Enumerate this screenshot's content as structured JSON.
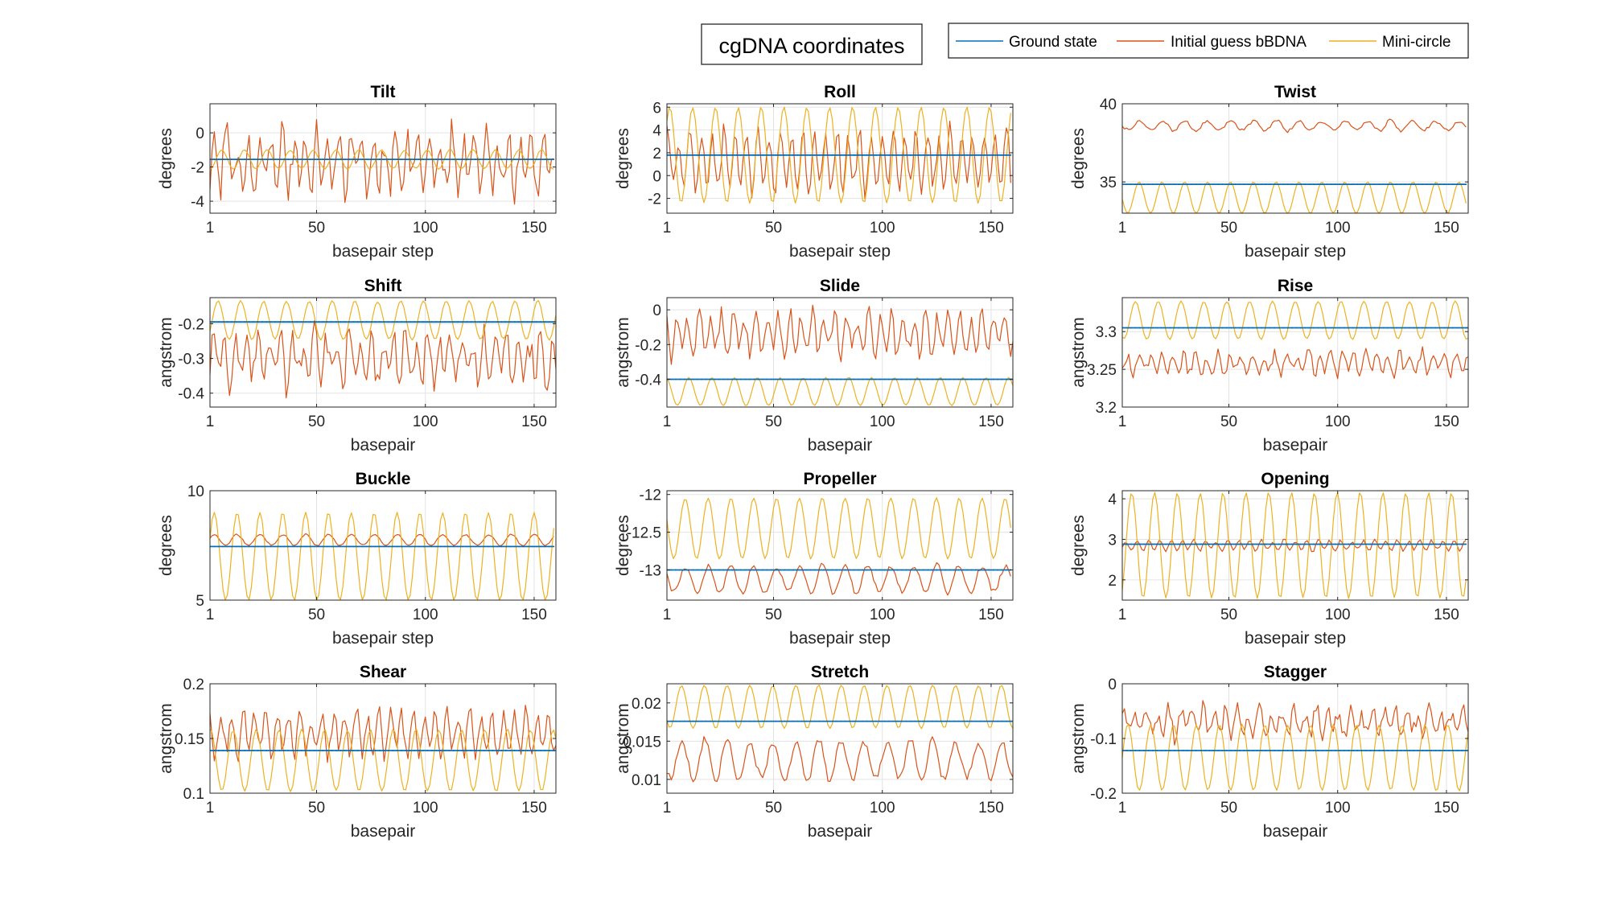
{
  "figure_title": "cgDNA coordinates",
  "legend": [
    {
      "label": "Ground state",
      "color": "#0072BD"
    },
    {
      "label": "Initial guess bBDNA",
      "color": "#D95319"
    },
    {
      "label": "Mini-circle",
      "color": "#EDB120"
    }
  ],
  "chart_data": [
    {
      "type": "line",
      "title": "Tilt",
      "xlabel": "basepair step",
      "ylabel": "degrees",
      "xlim": [
        1,
        160
      ],
      "ylim": [
        -4.7,
        1.7
      ],
      "xticks": [
        1,
        50,
        100,
        150
      ],
      "yticks": [
        -4,
        -2,
        0
      ],
      "x": {
        "start": 1,
        "end": 159
      },
      "series": [
        {
          "name": "Ground state",
          "mean": -1.55,
          "amp": 0,
          "period": 10.5,
          "noise": 0
        },
        {
          "name": "Initial guess bBDNA",
          "mean": -1.7,
          "amp": 1.4,
          "period": 5.2,
          "noise": 1.4
        },
        {
          "name": "Mini-circle",
          "mean": -1.55,
          "amp": 0.55,
          "period": 10.5,
          "noise": 0.05
        }
      ]
    },
    {
      "type": "line",
      "title": "Roll",
      "xlabel": "basepair step",
      "ylabel": "degrees",
      "xlim": [
        1,
        160
      ],
      "ylim": [
        -3.3,
        6.3
      ],
      "xticks": [
        1,
        50,
        100,
        150
      ],
      "yticks": [
        -2,
        0,
        2,
        4,
        6
      ],
      "x": {
        "start": 1,
        "end": 159
      },
      "series": [
        {
          "name": "Ground state",
          "mean": 1.8,
          "amp": 0,
          "period": 10.5,
          "noise": 0
        },
        {
          "name": "Initial guess bBDNA",
          "mean": 1.3,
          "amp": 2.4,
          "period": 5.2,
          "noise": 1.2
        },
        {
          "name": "Mini-circle",
          "mean": 1.8,
          "amp": 4.2,
          "period": 10.5,
          "noise": 0.05
        }
      ]
    },
    {
      "type": "line",
      "title": "Twist",
      "xlabel": "basepair step",
      "ylabel": "degrees",
      "xlim": [
        1,
        160
      ],
      "ylim": [
        33,
        40
      ],
      "xticks": [
        1,
        50,
        100,
        150
      ],
      "yticks": [
        35,
        40
      ],
      "x": {
        "start": 1,
        "end": 159
      },
      "series": [
        {
          "name": "Ground state",
          "mean": 34.85,
          "amp": 0,
          "period": 10.5,
          "noise": 0
        },
        {
          "name": "Initial guess bBDNA",
          "mean": 38.6,
          "amp": 0.3,
          "period": 10.5,
          "noise": 0.15
        },
        {
          "name": "Mini-circle",
          "mean": 34.0,
          "amp": 1.0,
          "period": 10.5,
          "noise": 0.02
        }
      ]
    },
    {
      "type": "line",
      "title": "Shift",
      "xlabel": "basepair",
      "ylabel": "angstrom",
      "xlim": [
        1,
        160
      ],
      "ylim": [
        -0.44,
        -0.125
      ],
      "xticks": [
        1,
        50,
        100,
        150
      ],
      "yticks": [
        -0.4,
        -0.3,
        -0.2
      ],
      "x": {
        "start": 1,
        "end": 160
      },
      "series": [
        {
          "name": "Ground state",
          "mean": -0.195,
          "amp": 0,
          "period": 10.5,
          "noise": 0
        },
        {
          "name": "Initial guess bBDNA",
          "mean": -0.3,
          "amp": 0.06,
          "period": 5.2,
          "noise": 0.06
        },
        {
          "name": "Mini-circle",
          "mean": -0.19,
          "amp": 0.055,
          "period": 10.5,
          "noise": 0.003
        }
      ]
    },
    {
      "type": "line",
      "title": "Slide",
      "xlabel": "basepair",
      "ylabel": "angstrom",
      "xlim": [
        1,
        160
      ],
      "ylim": [
        -0.56,
        0.07
      ],
      "xticks": [
        1,
        50,
        100,
        150
      ],
      "yticks": [
        -0.4,
        -0.2,
        0
      ],
      "x": {
        "start": 1,
        "end": 160
      },
      "series": [
        {
          "name": "Ground state",
          "mean": -0.4,
          "amp": 0,
          "period": 10.5,
          "noise": 0
        },
        {
          "name": "Initial guess bBDNA",
          "mean": -0.14,
          "amp": 0.1,
          "period": 5.2,
          "noise": 0.08
        },
        {
          "name": "Mini-circle",
          "mean": -0.47,
          "amp": 0.08,
          "period": 10.5,
          "noise": 0.003
        }
      ]
    },
    {
      "type": "line",
      "title": "Rise",
      "xlabel": "basepair",
      "ylabel": "angstrom",
      "xlim": [
        1,
        160
      ],
      "ylim": [
        3.2,
        3.345
      ],
      "xticks": [
        1,
        50,
        100,
        150
      ],
      "yticks": [
        3.2,
        3.25,
        3.3
      ],
      "x": {
        "start": 1,
        "end": 160
      },
      "series": [
        {
          "name": "Ground state",
          "mean": 3.305,
          "amp": 0,
          "period": 10.5,
          "noise": 0
        },
        {
          "name": "Initial guess bBDNA",
          "mean": 3.258,
          "amp": 0.012,
          "period": 5.2,
          "noise": 0.012
        },
        {
          "name": "Mini-circle",
          "mean": 3.315,
          "amp": 0.025,
          "period": 10.5,
          "noise": 0.001
        }
      ]
    },
    {
      "type": "line",
      "title": "Buckle",
      "xlabel": "basepair step",
      "ylabel": "degrees",
      "xlim": [
        1,
        160
      ],
      "ylim": [
        5,
        10
      ],
      "xticks": [
        1,
        50,
        100,
        150
      ],
      "yticks": [
        5,
        10
      ],
      "x": {
        "start": 1,
        "end": 159
      },
      "series": [
        {
          "name": "Ground state",
          "mean": 7.45,
          "amp": 0,
          "period": 10.5,
          "noise": 0
        },
        {
          "name": "Initial guess bBDNA",
          "mean": 7.75,
          "amp": 0.25,
          "period": 10.5,
          "noise": 0.05
        },
        {
          "name": "Mini-circle",
          "mean": 7.0,
          "amp": 2.0,
          "period": 10.5,
          "noise": 0.02
        }
      ]
    },
    {
      "type": "line",
      "title": "Propeller",
      "xlabel": "basepair step",
      "ylabel": "degrees",
      "xlim": [
        1,
        160
      ],
      "ylim": [
        -13.4,
        -11.95
      ],
      "xticks": [
        1,
        50,
        100,
        150
      ],
      "yticks": [
        -13,
        -12.5,
        -12
      ],
      "x": {
        "start": 1,
        "end": 159
      },
      "series": [
        {
          "name": "Ground state",
          "mean": -13.0,
          "amp": 0,
          "period": 10.5,
          "noise": 0
        },
        {
          "name": "Initial guess bBDNA",
          "mean": -13.12,
          "amp": 0.18,
          "period": 10.5,
          "noise": 0.05
        },
        {
          "name": "Mini-circle",
          "mean": -12.45,
          "amp": 0.4,
          "period": 10.5,
          "noise": 0.01
        }
      ]
    },
    {
      "type": "line",
      "title": "Opening",
      "xlabel": "basepair step",
      "ylabel": "degrees",
      "xlim": [
        1,
        160
      ],
      "ylim": [
        1.5,
        4.2
      ],
      "xticks": [
        1,
        50,
        100,
        150
      ],
      "yticks": [
        2,
        3,
        4
      ],
      "x": {
        "start": 1,
        "end": 159
      },
      "series": [
        {
          "name": "Ground state",
          "mean": 2.88,
          "amp": 0,
          "period": 10.5,
          "noise": 0
        },
        {
          "name": "Initial guess bBDNA",
          "mean": 2.85,
          "amp": 0.12,
          "period": 5.2,
          "noise": 0.06
        },
        {
          "name": "Mini-circle",
          "mean": 2.85,
          "amp": 1.3,
          "period": 10.5,
          "noise": 0.02
        }
      ]
    },
    {
      "type": "line",
      "title": "Shear",
      "xlabel": "basepair",
      "ylabel": "angstrom",
      "xlim": [
        1,
        160
      ],
      "ylim": [
        0.1,
        0.2
      ],
      "xticks": [
        1,
        50,
        100,
        150
      ],
      "yticks": [
        0.1,
        0.15,
        0.2
      ],
      "x": {
        "start": 1,
        "end": 160
      },
      "series": [
        {
          "name": "Ground state",
          "mean": 0.139,
          "amp": 0,
          "period": 10.5,
          "noise": 0
        },
        {
          "name": "Initial guess bBDNA",
          "mean": 0.155,
          "amp": 0.018,
          "period": 5.2,
          "noise": 0.012
        },
        {
          "name": "Mini-circle",
          "mean": 0.13,
          "amp": 0.028,
          "period": 10.5,
          "noise": 0.001
        }
      ]
    },
    {
      "type": "line",
      "title": "Stretch",
      "xlabel": "basepair",
      "ylabel": "angstrom",
      "xlim": [
        1,
        160
      ],
      "ylim": [
        0.0082,
        0.0225
      ],
      "xticks": [
        1,
        50,
        100,
        150
      ],
      "yticks": [
        0.01,
        0.015,
        0.02
      ],
      "x": {
        "start": 1,
        "end": 160
      },
      "series": [
        {
          "name": "Ground state",
          "mean": 0.0176,
          "amp": 0,
          "period": 10.5,
          "noise": 0
        },
        {
          "name": "Initial guess bBDNA",
          "mean": 0.0125,
          "amp": 0.0025,
          "period": 10.5,
          "noise": 0.0008
        },
        {
          "name": "Mini-circle",
          "mean": 0.0195,
          "amp": 0.0028,
          "period": 10.5,
          "noise": 0.0001
        }
      ]
    },
    {
      "type": "line",
      "title": "Stagger",
      "xlabel": "basepair",
      "ylabel": "angstrom",
      "xlim": [
        1,
        160
      ],
      "ylim": [
        -0.2,
        0
      ],
      "xticks": [
        1,
        50,
        100,
        150
      ],
      "yticks": [
        -0.2,
        -0.1,
        0
      ],
      "x": {
        "start": 1,
        "end": 160
      },
      "series": [
        {
          "name": "Ground state",
          "mean": -0.122,
          "amp": 0,
          "period": 10.5,
          "noise": 0
        },
        {
          "name": "Initial guess bBDNA",
          "mean": -0.07,
          "amp": 0.02,
          "period": 5.2,
          "noise": 0.025
        },
        {
          "name": "Mini-circle",
          "mean": -0.135,
          "amp": 0.06,
          "period": 10.5,
          "noise": 0.002
        }
      ]
    }
  ]
}
